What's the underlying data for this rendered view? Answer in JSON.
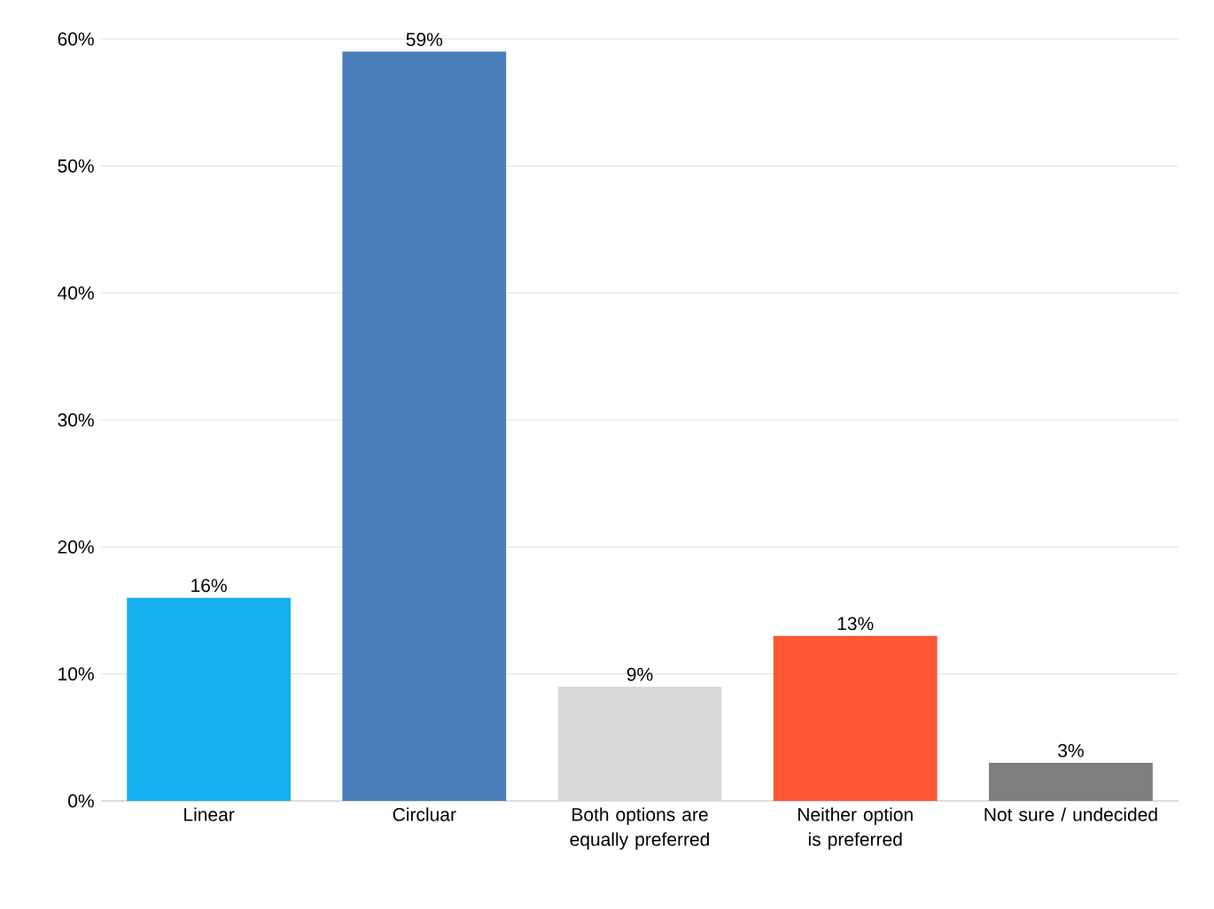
{
  "chart_data": {
    "type": "bar",
    "categories": [
      "Linear",
      "Circluar",
      "Both options are equally preferred",
      "Neither option is preferred",
      "Not sure / undecided"
    ],
    "values": [
      16,
      59,
      9,
      13,
      3
    ],
    "value_labels": [
      "16%",
      "59%",
      "9%",
      "13%",
      "3%"
    ],
    "colors": [
      "#16b0f0",
      "#4a7ebb",
      "#d9d9d9",
      "#ff5733",
      "#7f7f7f"
    ],
    "ylim": [
      0,
      60
    ],
    "yticks": [
      {
        "value": 0,
        "label": "0%"
      },
      {
        "value": 10,
        "label": "10%"
      },
      {
        "value": 20,
        "label": "20%"
      },
      {
        "value": 30,
        "label": "30%"
      },
      {
        "value": 40,
        "label": "40%"
      },
      {
        "value": 50,
        "label": "50%"
      },
      {
        "value": 60,
        "label": "60%"
      }
    ],
    "grid": "y"
  }
}
